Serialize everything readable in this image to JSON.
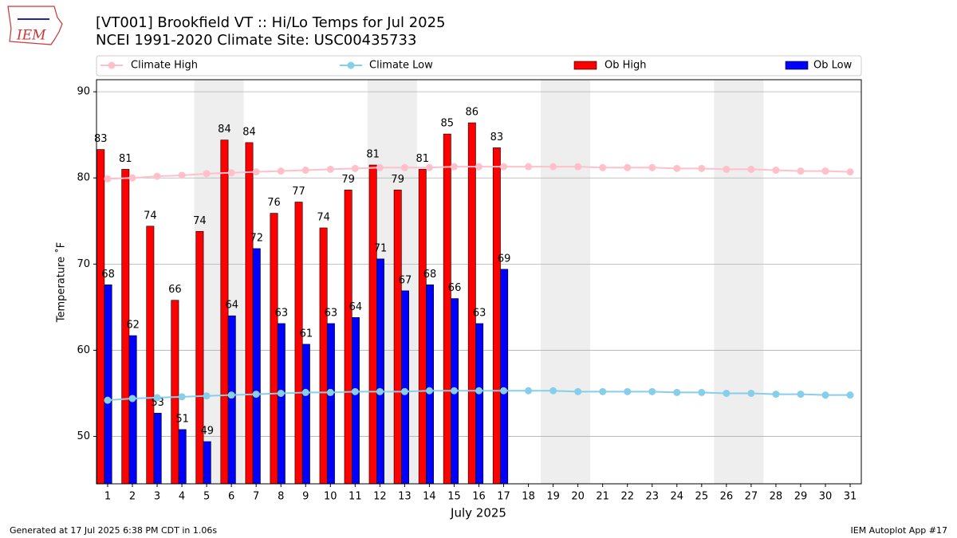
{
  "logo_text": "IEM",
  "chart_data": {
    "type": "bar_line",
    "title": "[VT001] Brookfield  VT :: Hi/Lo Temps for Jul 2025",
    "subtitle": "NCEI 1991-2020 Climate Site: USC00435733",
    "xlabel": "July 2025",
    "ylabel": "Temperature ˚F",
    "footer_left": "Generated at 17 Jul 2025 6:38 PM CDT in 1.06s",
    "footer_right": "IEM Autoplot App #17",
    "categories": [
      "1",
      "2",
      "3",
      "4",
      "5",
      "6",
      "7",
      "8",
      "9",
      "10",
      "11",
      "12",
      "13",
      "14",
      "15",
      "16",
      "17",
      "18",
      "19",
      "20",
      "21",
      "22",
      "23",
      "24",
      "25",
      "26",
      "27",
      "28",
      "29",
      "30",
      "31"
    ],
    "xlim": [
      0.55,
      31.45
    ],
    "ylim": [
      44.5,
      91.4
    ],
    "yticks": [
      50,
      60,
      70,
      80,
      90
    ],
    "grid": true,
    "weekend_shading": [
      [
        4.5,
        6.5
      ],
      [
        11.5,
        13.5
      ],
      [
        18.5,
        20.5
      ],
      [
        25.5,
        27.5
      ]
    ],
    "shading_color": "#eeeeee",
    "series": [
      {
        "name": "Climate High",
        "type": "line",
        "color": "#ffc0cb",
        "values": [
          79.9,
          80.0,
          80.2,
          80.3,
          80.5,
          80.6,
          80.7,
          80.8,
          80.9,
          81.0,
          81.1,
          81.2,
          81.2,
          81.2,
          81.3,
          81.3,
          81.3,
          81.3,
          81.3,
          81.3,
          81.2,
          81.2,
          81.2,
          81.1,
          81.1,
          81.0,
          81.0,
          80.9,
          80.8,
          80.8,
          80.7
        ]
      },
      {
        "name": "Climate Low",
        "type": "line",
        "color": "#87ceeb",
        "values": [
          54.2,
          54.4,
          54.5,
          54.6,
          54.7,
          54.8,
          54.9,
          55.0,
          55.1,
          55.1,
          55.2,
          55.2,
          55.2,
          55.3,
          55.3,
          55.3,
          55.3,
          55.3,
          55.3,
          55.2,
          55.2,
          55.2,
          55.2,
          55.1,
          55.1,
          55.0,
          55.0,
          54.9,
          54.9,
          54.8,
          54.8
        ]
      },
      {
        "name": "Ob High",
        "type": "bar",
        "color": "#ff0000",
        "values": [
          83.3,
          81.0,
          74.4,
          65.8,
          73.8,
          84.4,
          84.1,
          75.9,
          77.2,
          74.2,
          78.6,
          81.5,
          78.6,
          81.0,
          85.1,
          86.4,
          83.5,
          null,
          null,
          null,
          null,
          null,
          null,
          null,
          null,
          null,
          null,
          null,
          null,
          null,
          null
        ],
        "value_labels": [
          "83",
          "81",
          "74",
          "66",
          "74",
          "84",
          "84",
          "76",
          "77",
          "74",
          "79",
          "81",
          "79",
          "81",
          "85",
          "86",
          "83",
          null,
          null,
          null,
          null,
          null,
          null,
          null,
          null,
          null,
          null,
          null,
          null,
          null,
          null
        ]
      },
      {
        "name": "Ob Low",
        "type": "bar",
        "color": "#0000ff",
        "values": [
          67.6,
          61.7,
          52.7,
          50.8,
          49.4,
          64.0,
          71.8,
          63.1,
          60.7,
          63.1,
          63.8,
          70.6,
          66.9,
          67.6,
          66.0,
          63.1,
          69.4,
          null,
          null,
          null,
          null,
          null,
          null,
          null,
          null,
          null,
          null,
          null,
          null,
          null,
          null
        ],
        "value_labels": [
          "68",
          "62",
          "53",
          "51",
          "49",
          "64",
          "72",
          "63",
          "61",
          "63",
          "64",
          "71",
          "67",
          "68",
          "66",
          "63",
          "69",
          null,
          null,
          null,
          null,
          null,
          null,
          null,
          null,
          null,
          null,
          null,
          null,
          null,
          null
        ]
      }
    ]
  }
}
